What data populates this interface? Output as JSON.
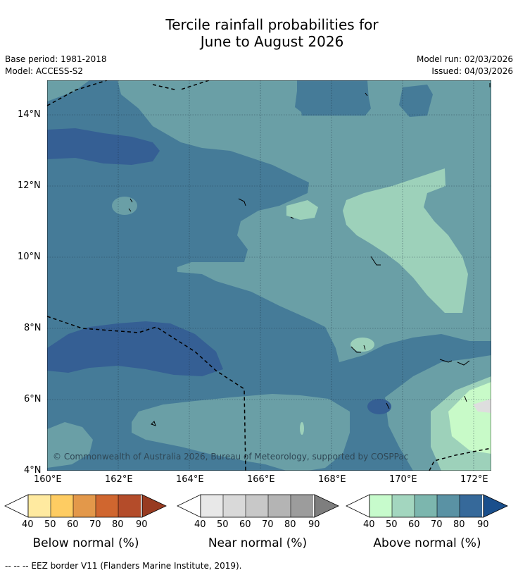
{
  "title": {
    "line1": "Tercile rainfall probabilities for",
    "line2": "June to August 2026"
  },
  "meta": {
    "base_period": "Base period: 1981-2018",
    "model": "Model: ACCESS-S2",
    "model_run": "Model run: 02/03/2026",
    "issued": "Issued: 04/03/2026"
  },
  "map": {
    "lon_range_deg": [
      160,
      172.5
    ],
    "lat_range_deg": [
      4,
      15
    ],
    "lon_ticks": [
      {
        "value": 160,
        "label": "160°E"
      },
      {
        "value": 162,
        "label": "162°E"
      },
      {
        "value": 164,
        "label": "164°E"
      },
      {
        "value": 166,
        "label": "166°E"
      },
      {
        "value": 168,
        "label": "168°E"
      },
      {
        "value": 170,
        "label": "170°E"
      },
      {
        "value": 172,
        "label": "172°E"
      }
    ],
    "lat_ticks": [
      {
        "value": 14,
        "label": "14°N"
      },
      {
        "value": 12,
        "label": "12°N"
      },
      {
        "value": 10,
        "label": "10°N"
      },
      {
        "value": 8,
        "label": "8°N"
      },
      {
        "value": 6,
        "label": "6°N"
      },
      {
        "value": 4,
        "label": "4°N"
      }
    ],
    "copyright": "© Commonwealth of Australia 2026, Bureau of Meteorology, supported by COSPPac",
    "category_colors": {
      "above_60_70": "#6a9fa6",
      "above_70_80": "#457b98",
      "above_80_90": "#355f94",
      "above_50_60": "#9dd1ba",
      "above_40_50": "#c8fac8",
      "no_data": "#dedede"
    }
  },
  "legends": [
    {
      "name": "below",
      "title": "Below normal (%)",
      "labels": [
        "40",
        "50",
        "60",
        "70",
        "80",
        "90"
      ],
      "colors": [
        "#ffffff",
        "#ffeaa0",
        "#fecc62",
        "#e3984a",
        "#d0662f",
        "#b44c2a",
        "#983b21"
      ]
    },
    {
      "name": "near",
      "title": "Near normal (%)",
      "labels": [
        "40",
        "50",
        "60",
        "70",
        "80",
        "90"
      ],
      "colors": [
        "#ffffff",
        "#e8e8e8",
        "#d9d9d9",
        "#c8c8c8",
        "#b4b4b4",
        "#9c9c9c",
        "#7e7e7e"
      ]
    },
    {
      "name": "above",
      "title": "Above normal (%)",
      "labels": [
        "40",
        "50",
        "60",
        "70",
        "80",
        "90"
      ],
      "colors": [
        "#ffffff",
        "#c7fbcc",
        "#a3d6bf",
        "#7cb6ae",
        "#5a92a4",
        "#36699a",
        "#1a4f8c"
      ]
    }
  ],
  "footer": "--  --  -- EEZ border V11 (Flanders Marine Institute, 2019)."
}
